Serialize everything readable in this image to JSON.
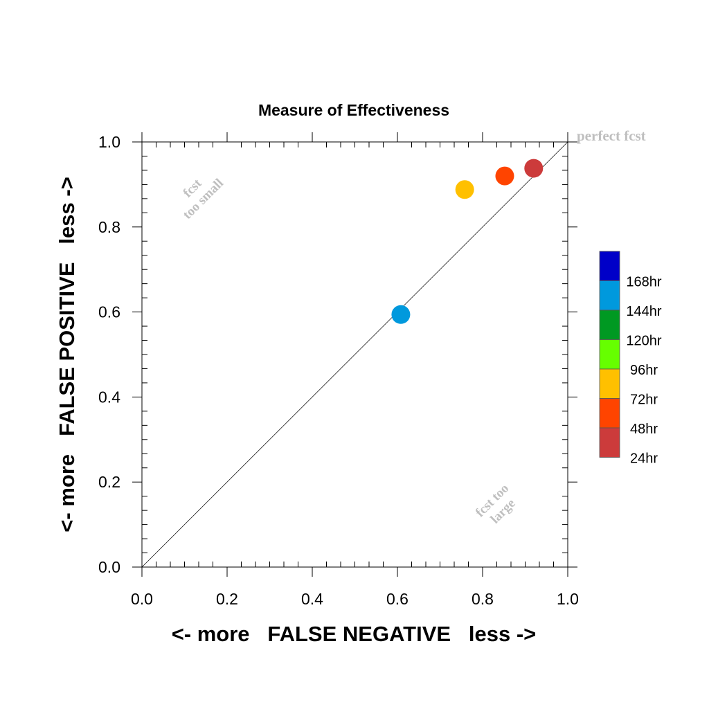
{
  "chart_data": {
    "type": "scatter",
    "title": "Measure of Effectiveness",
    "xlabel": "<- more   FALSE NEGATIVE   less ->",
    "ylabel": "<- more   FALSE POSITIVE   less ->",
    "xlim": [
      0.0,
      1.0
    ],
    "ylim": [
      0.0,
      1.0
    ],
    "xticks": [
      "0.0",
      "0.2",
      "0.4",
      "0.6",
      "0.8",
      "1.0"
    ],
    "yticks": [
      "0.0",
      "0.2",
      "0.4",
      "0.6",
      "0.8",
      "1.0"
    ],
    "grid": false,
    "diagonal_line": true,
    "annotations": {
      "perfect": "perfect fcst",
      "too_small_line1": "fcst",
      "too_small_line2": "too small",
      "too_large_line1": "fcst too",
      "too_large_line2": "large"
    },
    "points": [
      {
        "label": "144hr",
        "x": 0.608,
        "y": 0.594,
        "color": "#0099dd"
      },
      {
        "label": "72hr",
        "x": 0.758,
        "y": 0.888,
        "color": "#ffc000"
      },
      {
        "label": "48hr",
        "x": 0.852,
        "y": 0.92,
        "color": "#ff4400"
      },
      {
        "label": "24hr",
        "x": 0.92,
        "y": 0.938,
        "color": "#cc3b3b"
      }
    ],
    "legend": {
      "placement": "right",
      "entries": [
        {
          "label": "168hr",
          "color": "#0000c8"
        },
        {
          "label": "144hr",
          "color": "#0099dd"
        },
        {
          "label": "120hr",
          "color": "#009922"
        },
        {
          "label": "96hr",
          "color": "#66ff00"
        },
        {
          "label": "72hr",
          "color": "#ffc000"
        },
        {
          "label": "48hr",
          "color": "#ff4400"
        },
        {
          "label": "24hr",
          "color": "#cc3b3b"
        }
      ]
    }
  }
}
